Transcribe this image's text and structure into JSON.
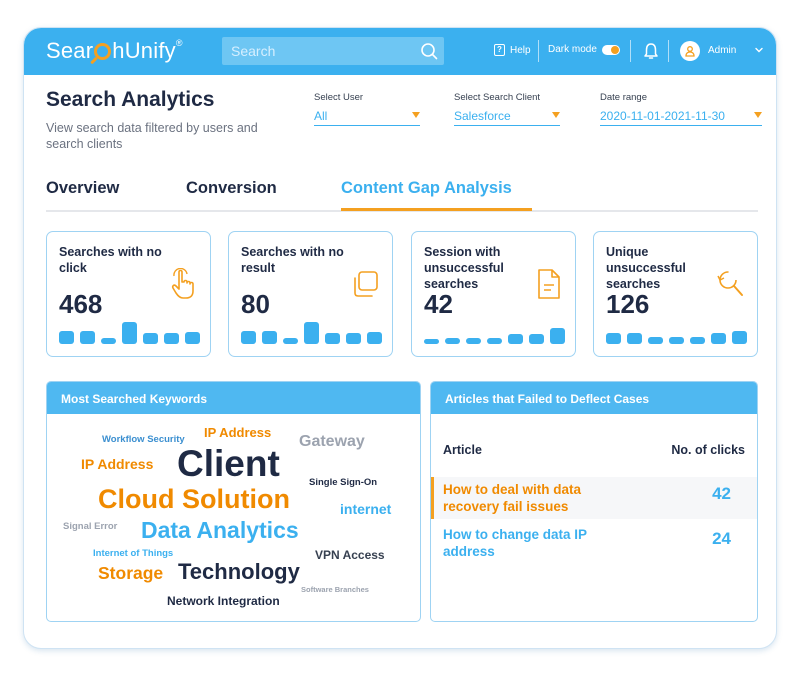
{
  "header": {
    "logo_left": "Sear",
    "logo_right": "hUnify",
    "logo_mark": "®",
    "search_placeholder": "Search",
    "help_label": "Help",
    "dark_mode_label": "Dark mode",
    "user_label": "Admin"
  },
  "page": {
    "title": "Search Analytics",
    "subtitle": "View search data filtered by users and search clients"
  },
  "filters": [
    {
      "label": "Select User",
      "value": "All"
    },
    {
      "label": "Select Search Client",
      "value": "Salesforce"
    },
    {
      "label": "Date range",
      "value": "2020-11-01-2021-11-30"
    }
  ],
  "tabs": [
    {
      "label": "Overview",
      "active": false
    },
    {
      "label": "Conversion",
      "active": false
    },
    {
      "label": "Content Gap Analysis",
      "active": true
    }
  ],
  "metrics": [
    {
      "title": "Searches with no click",
      "value": "468",
      "icon": "hand-pointer-icon",
      "bar_levels": [
        0.55,
        0.55,
        0.25,
        0.9,
        0.45,
        0.45,
        0.5
      ]
    },
    {
      "title": "Searches with no result",
      "value": "80",
      "icon": "copy-pages-icon",
      "bar_levels": [
        0.55,
        0.55,
        0.25,
        0.9,
        0.45,
        0.45,
        0.5
      ]
    },
    {
      "title": "Session with unsuccessful searches",
      "value": "42",
      "icon": "document-icon",
      "bar_levels": [
        0.2,
        0.25,
        0.25,
        0.25,
        0.4,
        0.4,
        0.65
      ]
    },
    {
      "title": "Unique unsuccessful searches",
      "value": "126",
      "icon": "search-refresh-icon",
      "bar_levels": [
        0.45,
        0.45,
        0.3,
        0.3,
        0.3,
        0.45,
        0.55
      ]
    }
  ],
  "keywords_panel": {
    "title": "Most Searched Keywords",
    "words": [
      {
        "text": "Workflow Security",
        "color": "#3b8fd0"
      },
      {
        "text": "IP Address",
        "color": "#f08a00"
      },
      {
        "text": "Gateway",
        "color": "#9ca3af"
      },
      {
        "text": "IP Address",
        "color": "#f08a00"
      },
      {
        "text": "Client",
        "color": "#1f2a44"
      },
      {
        "text": "Single Sign-On",
        "color": "#1f2a44"
      },
      {
        "text": "Cloud Solution",
        "color": "#f08a00"
      },
      {
        "text": "internet",
        "color": "#3bb0ef"
      },
      {
        "text": "Signal Error",
        "color": "#9ca3af"
      },
      {
        "text": "Data Analytics",
        "color": "#3bb0ef"
      },
      {
        "text": "Internet of Things",
        "color": "#3bb0ef"
      },
      {
        "text": "VPN Access",
        "color": "#374151"
      },
      {
        "text": "Storage",
        "color": "#f08a00"
      },
      {
        "text": "Technology",
        "color": "#1f2a44"
      },
      {
        "text": "Software Branches",
        "color": "#9ca3af"
      },
      {
        "text": "Network Integration",
        "color": "#1f2a44"
      }
    ]
  },
  "articles_panel": {
    "title": "Articles that Failed to Deflect Cases",
    "col_article": "Article",
    "col_clicks": "No. of clicks",
    "rows": [
      {
        "title": "How to deal with data recovery fail issues",
        "clicks": "42",
        "color": "#f08a00"
      },
      {
        "title": "How to change data IP address",
        "clicks": "24",
        "color": "#3bb0ef"
      }
    ]
  },
  "colors": {
    "accent_blue": "#3bb0ef",
    "accent_orange": "#f4a020",
    "text_dark": "#1f2a44"
  }
}
